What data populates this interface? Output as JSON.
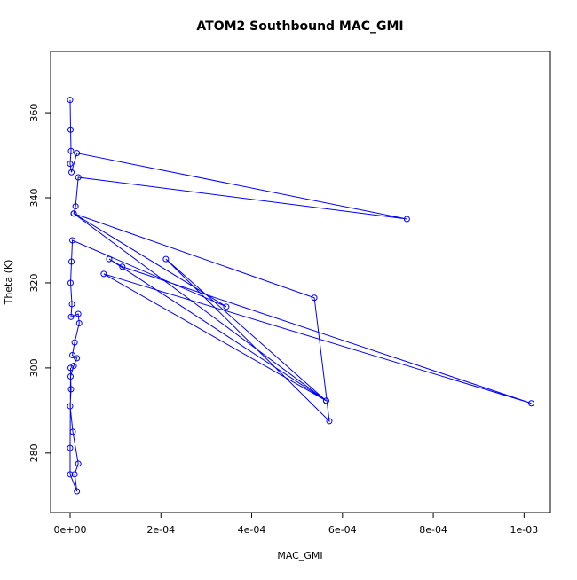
{
  "chart_data": {
    "type": "line",
    "title": "ATOM2 Southbound MAC_GMI",
    "xlabel": "MAC_GMI",
    "ylabel": "Theta (K)",
    "xlim": [
      -4.3e-05,
      0.001058
    ],
    "ylim": [
      266,
      374.4
    ],
    "xticks": [
      {
        "value": 0,
        "label": "0e+00"
      },
      {
        "value": 0.0002,
        "label": "2e-04"
      },
      {
        "value": 0.0004,
        "label": "4e-04"
      },
      {
        "value": 0.0006,
        "label": "6e-04"
      },
      {
        "value": 0.0008,
        "label": "8e-04"
      },
      {
        "value": 0.001,
        "label": "1e-03"
      }
    ],
    "yticks": [
      280,
      300,
      320,
      340,
      360
    ],
    "grid": false,
    "series": [
      {
        "name": "MAC_GMI",
        "color": "#0000ff",
        "x": [
          0,
          1e-06,
          2e-06,
          0,
          3e-06,
          1.5e-05,
          0.000742,
          1.8e-05,
          1.2e-05,
          8e-06,
          0.000538,
          0.000571,
          0.000211,
          0.000564,
          8.6e-05,
          0.000115,
          0.001016,
          7.4e-05,
          0.000564,
          8e-06,
          0.000344,
          5e-06,
          3e-06,
          1e-06,
          4e-06,
          2e-06,
          1.8e-05,
          2e-05,
          1e-05,
          5e-06,
          1.5e-05,
          8e-06,
          1e-06,
          2e-06,
          0,
          6e-06,
          1.8e-05,
          1e-05,
          1.5e-05,
          0,
          0,
          1e-06
        ],
        "values": [
          363,
          356,
          351,
          348,
          346,
          350.5,
          335,
          344.8,
          338,
          336.3,
          316.5,
          287.5,
          325.6,
          292.3,
          325.6,
          323.8,
          291.7,
          322.1,
          292.3,
          336.3,
          314.4,
          330,
          325,
          320,
          315,
          312,
          312.7,
          310.5,
          306,
          303,
          302.3,
          300.5,
          298,
          295,
          291,
          285,
          277.5,
          275,
          271,
          275,
          281.2,
          300
        ]
      }
    ]
  }
}
